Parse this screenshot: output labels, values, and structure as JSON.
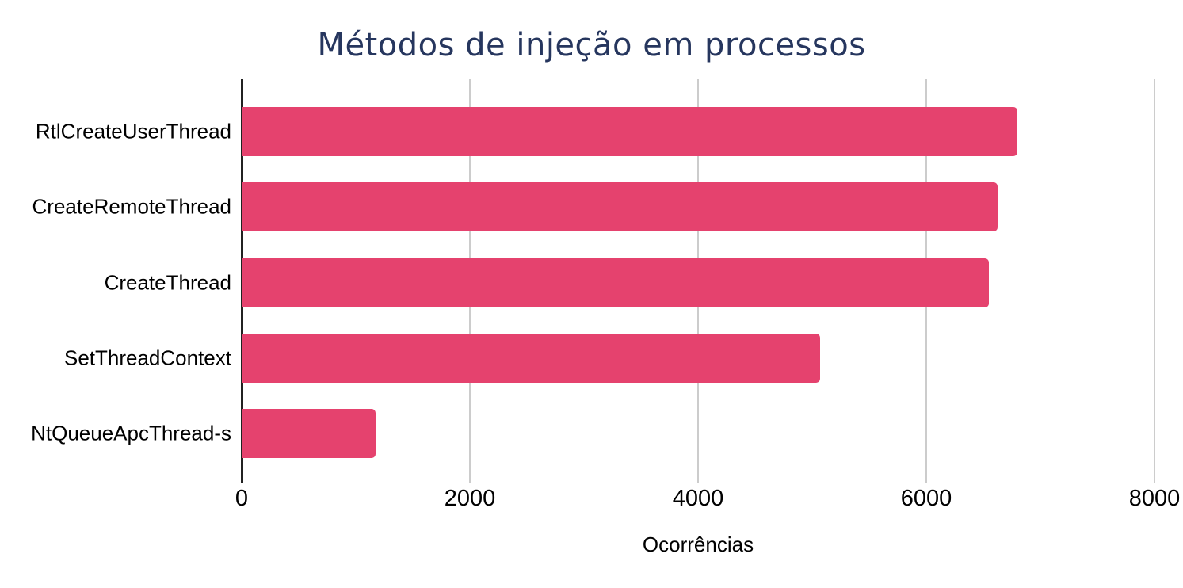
{
  "chart_data": {
    "type": "bar",
    "orientation": "horizontal",
    "title": "Métodos de injeção em processos",
    "categories": [
      "RtlCreateUserThread",
      "CreateRemoteThread",
      "CreateThread",
      "SetThreadContext",
      "NtQueueApcThread-s"
    ],
    "values": [
      6790,
      6620,
      6540,
      5060,
      1170
    ],
    "xlabel": "Ocorrências",
    "ylabel": "",
    "xlim": [
      0,
      8090
    ],
    "xticks": [
      0,
      2000,
      4000,
      6000,
      8000
    ],
    "grid": "vertical-only",
    "legend": "none",
    "colors": {
      "bar": "#E5426E",
      "title": "#26365E",
      "gridline": "#CCCCCC",
      "axis": "#212121",
      "text": "#000000",
      "background": "#FFFFFF"
    }
  }
}
